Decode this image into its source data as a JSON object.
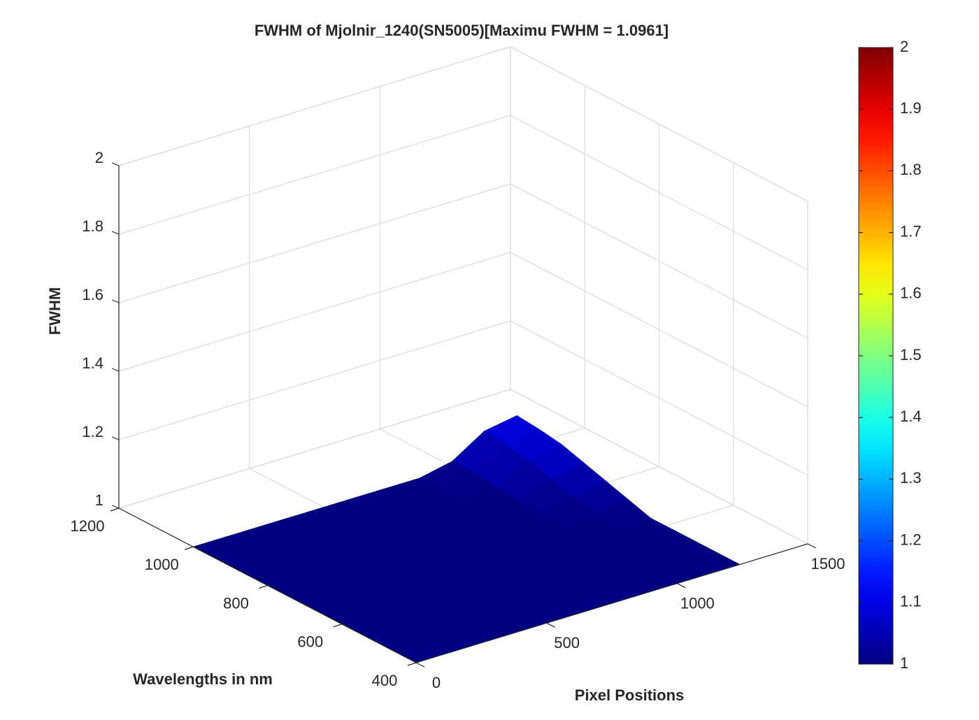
{
  "chart_data": {
    "type": "surface",
    "title": "FWHM of Mjolnir_1240(SN5005)[Maximu FWHM = 1.0961]",
    "xlabel": "Pixel Positions",
    "ylabel": "Wavelengths in nm",
    "zlabel": "FWHM",
    "x": [
      0,
      124,
      248,
      372,
      496,
      620,
      744,
      868,
      992,
      1116,
      1240
    ],
    "y": [
      400,
      460,
      520,
      580,
      640,
      700,
      760,
      820,
      880,
      940,
      1000
    ],
    "z": [
      [
        1,
        1,
        1,
        1,
        1,
        1,
        1,
        1,
        1,
        1,
        1
      ],
      [
        1,
        1,
        1,
        1,
        1,
        1,
        1,
        1,
        1,
        1,
        1
      ],
      [
        1,
        1,
        1,
        1,
        1,
        1,
        1,
        1,
        1,
        1,
        1
      ],
      [
        1,
        1,
        1,
        1,
        1,
        1,
        1,
        1,
        1,
        1,
        1
      ],
      [
        1,
        1,
        1,
        1,
        1,
        1,
        1,
        1,
        1,
        1,
        1
      ],
      [
        1,
        1,
        1,
        1,
        1,
        1,
        1,
        1,
        1,
        1.01,
        1.02
      ],
      [
        1,
        1,
        1,
        1,
        1,
        1,
        1,
        1,
        1,
        1.02,
        1.04
      ],
      [
        1,
        1,
        1,
        1,
        1,
        1,
        1,
        1,
        1.005,
        1.04,
        1.06
      ],
      [
        1,
        1,
        1,
        1,
        1,
        1,
        1,
        1,
        1.01,
        1.06,
        1.08
      ],
      [
        1,
        1,
        1,
        1,
        1,
        1,
        1,
        1,
        1.02,
        1.07,
        1.09
      ],
      [
        1,
        1,
        1,
        1,
        1,
        1,
        1,
        1,
        1.02,
        1.08,
        1.0961
      ]
    ],
    "xlim": [
      0,
      1500
    ],
    "xticks": [
      0,
      500,
      1000,
      1500
    ],
    "ylim": [
      400,
      1200
    ],
    "yticks": [
      400,
      600,
      800,
      1000,
      1200
    ],
    "zlim": [
      1,
      2
    ],
    "zticks": [
      1,
      1.2,
      1.4,
      1.6,
      1.8,
      2
    ],
    "colormap": "jet",
    "clim": [
      1,
      2
    ],
    "cticks": [
      1,
      1.1,
      1.2,
      1.3,
      1.4,
      1.5,
      1.6,
      1.7,
      1.8,
      1.9,
      2
    ],
    "grid": true
  }
}
